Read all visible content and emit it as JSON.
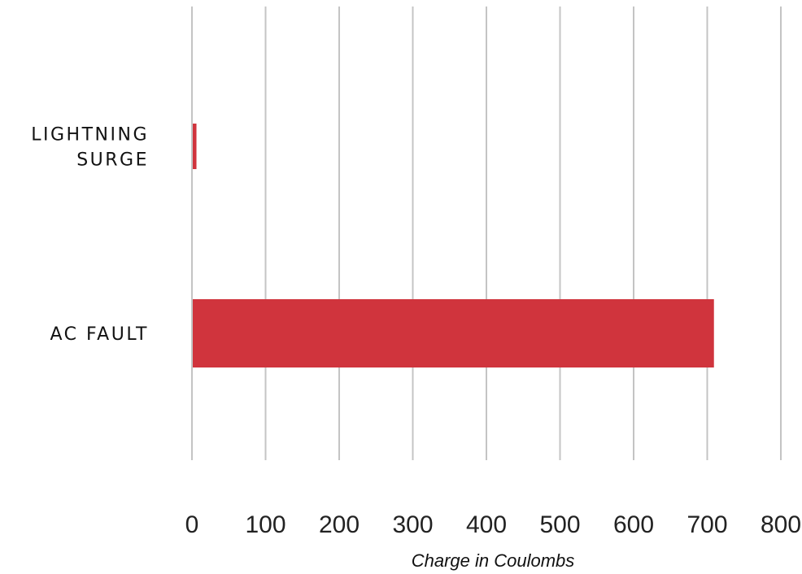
{
  "chart_data": {
    "type": "bar",
    "orientation": "horizontal",
    "categories": [
      "LIGHTNING SURGE",
      "AC FAULT"
    ],
    "category_lines": [
      [
        "LIGHTNING",
        "SURGE"
      ],
      [
        "AC FAULT"
      ]
    ],
    "values": [
      5,
      708
    ],
    "xlabel": "Charge in Coulombs",
    "ylabel": "",
    "xlim": [
      0,
      800
    ],
    "xticks": [
      0,
      100,
      200,
      300,
      400,
      500,
      600,
      700,
      800
    ],
    "grid": "vertical",
    "legend": "none",
    "bar_color": "#d0343d"
  }
}
